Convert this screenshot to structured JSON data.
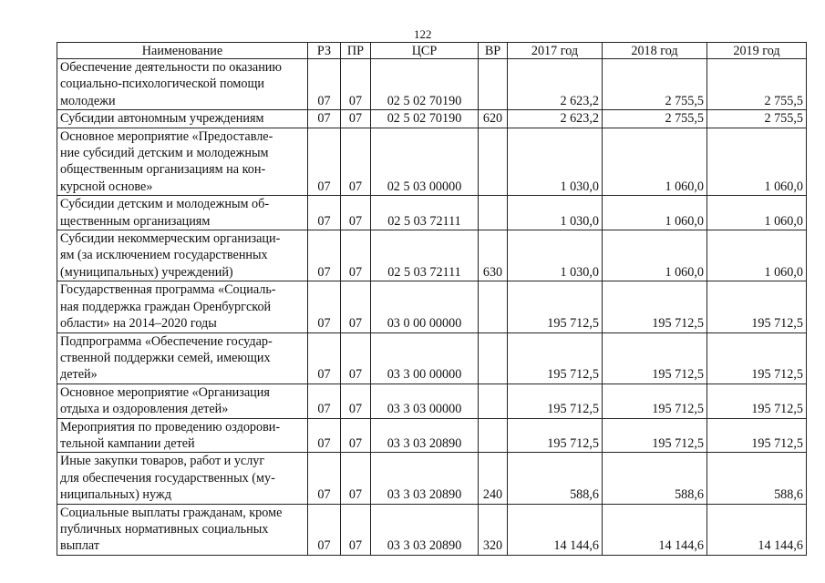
{
  "page_number": "122",
  "headers": [
    "Наименование",
    "РЗ",
    "ПР",
    "ЦСР",
    "ВР",
    "2017 год",
    "2018 год",
    "2019 год"
  ],
  "rows": [
    {
      "name": "Обеспечение деятельности по оказанию\nсоциально-психологической помощи\nмолодежи",
      "rz": "07",
      "pr": "07",
      "csr": "02 5 02 70190",
      "vr": "",
      "y2017": "2 623,2",
      "y2018": "2 755,5",
      "y2019": "2 755,5"
    },
    {
      "name": "Субсидии автономным учреждениям",
      "rz": "07",
      "pr": "07",
      "csr": "02 5 02 70190",
      "vr": "620",
      "y2017": "2 623,2",
      "y2018": "2 755,5",
      "y2019": "2 755,5"
    },
    {
      "name": "Основное мероприятие «Предоставле-\nние субсидий детским и молодежным\nобщественным организациям на кон-\nкурсной основе»",
      "rz": "07",
      "pr": "07",
      "csr": "02 5 03 00000",
      "vr": "",
      "y2017": "1 030,0",
      "y2018": "1 060,0",
      "y2019": "1 060,0"
    },
    {
      "name": "Субсидии детским и молодежным об-\nщественным организациям",
      "rz": "07",
      "pr": "07",
      "csr": "02 5 03 72111",
      "vr": "",
      "y2017": "1 030,0",
      "y2018": "1 060,0",
      "y2019": "1 060,0"
    },
    {
      "name": "Субсидии некоммерческим организаци-\nям (за исключением государственных\n(муниципальных) учреждений)",
      "rz": "07",
      "pr": "07",
      "csr": "02 5 03 72111",
      "vr": "630",
      "y2017": "1 030,0",
      "y2018": "1 060,0",
      "y2019": "1 060,0"
    },
    {
      "name": "Государственная программа «Социаль-\nная поддержка граждан Оренбургской\nобласти» на 2014–2020 годы",
      "rz": "07",
      "pr": "07",
      "csr": "03 0 00 00000",
      "vr": "",
      "y2017": "195 712,5",
      "y2018": "195 712,5",
      "y2019": "195 712,5"
    },
    {
      "name": "Подпрограмма «Обеспечение государ-\nственной поддержки семей, имеющих\nдетей»",
      "rz": "07",
      "pr": "07",
      "csr": "03 3 00 00000",
      "vr": "",
      "y2017": "195 712,5",
      "y2018": "195 712,5",
      "y2019": "195 712,5"
    },
    {
      "name": "Основное мероприятие «Организация\nотдыха и оздоровления детей»",
      "rz": "07",
      "pr": "07",
      "csr": "03 3 03 00000",
      "vr": "",
      "y2017": "195 712,5",
      "y2018": "195 712,5",
      "y2019": "195 712,5"
    },
    {
      "name": "Мероприятия по проведению оздорови-\nтельной кампании детей",
      "rz": "07",
      "pr": "07",
      "csr": "03 3 03 20890",
      "vr": "",
      "y2017": "195 712,5",
      "y2018": "195 712,5",
      "y2019": "195 712,5"
    },
    {
      "name": "Иные закупки товаров, работ и услуг\nдля обеспечения государственных (му-\nниципальных) нужд",
      "rz": "07",
      "pr": "07",
      "csr": "03 3 03 20890",
      "vr": "240",
      "y2017": "588,6",
      "y2018": "588,6",
      "y2019": "588,6"
    },
    {
      "name": "Социальные выплаты гражданам, кроме\nпубличных нормативных социальных\nвыплат",
      "rz": "07",
      "pr": "07",
      "csr": "03 3 03 20890",
      "vr": "320",
      "y2017": "14 144,6",
      "y2018": "14 144,6",
      "y2019": "14 144,6"
    }
  ]
}
